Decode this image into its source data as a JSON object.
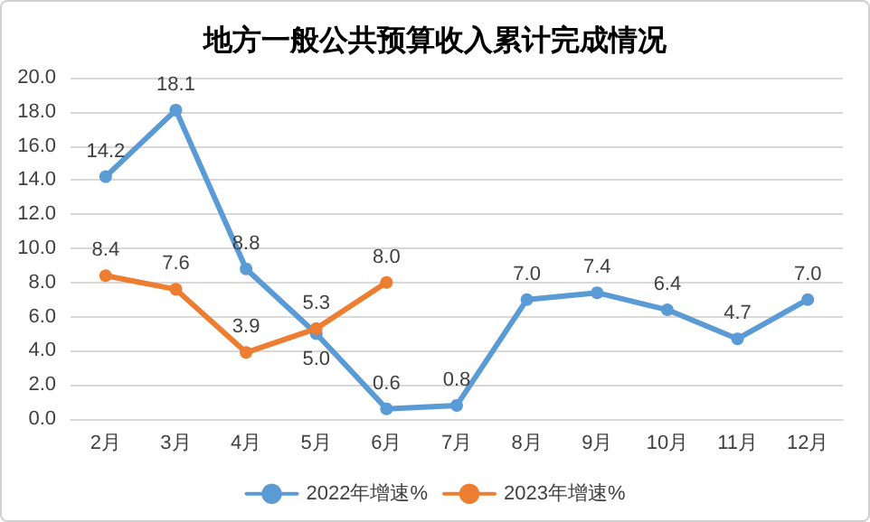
{
  "chart_data": {
    "type": "line",
    "title": "地方一般公共预算收入累计完成情况",
    "categories": [
      "2月",
      "3月",
      "4月",
      "5月",
      "6月",
      "7月",
      "8月",
      "9月",
      "10月",
      "11月",
      "12月"
    ],
    "series": [
      {
        "name": "2022年增速%",
        "color": "#5b9bd5",
        "values": [
          14.2,
          18.1,
          8.8,
          5.0,
          0.6,
          0.8,
          7.0,
          7.4,
          6.4,
          4.7,
          7.0
        ],
        "value_labels": [
          "14.2",
          "18.1",
          "8.8",
          "5.0",
          "0.6",
          "0.8",
          "7.0",
          "7.4",
          "6.4",
          "4.7",
          "7.0"
        ]
      },
      {
        "name": "2023年增速%",
        "color": "#ed7d31",
        "values": [
          8.4,
          7.6,
          3.9,
          5.3,
          8.0,
          null,
          null,
          null,
          null,
          null,
          null
        ],
        "value_labels": [
          "8.4",
          "7.6",
          "3.9",
          "5.3",
          "8.0",
          null,
          null,
          null,
          null,
          null,
          null
        ]
      }
    ],
    "ylim": [
      0,
      20
    ],
    "yticks": [
      {
        "value": 0,
        "label": "0.0"
      },
      {
        "value": 2,
        "label": "2.0"
      },
      {
        "value": 4,
        "label": "4.0"
      },
      {
        "value": 6,
        "label": "6.0"
      },
      {
        "value": 8,
        "label": "8.0"
      },
      {
        "value": 10,
        "label": "10.0"
      },
      {
        "value": 12,
        "label": "12.0"
      },
      {
        "value": 14,
        "label": "14.0"
      },
      {
        "value": 16,
        "label": "16.0"
      },
      {
        "value": 18,
        "label": "18.0"
      },
      {
        "value": 20,
        "label": "20.0"
      }
    ],
    "grid": "y",
    "legend": "bottom",
    "marker": "circle",
    "line_style": "solid"
  }
}
